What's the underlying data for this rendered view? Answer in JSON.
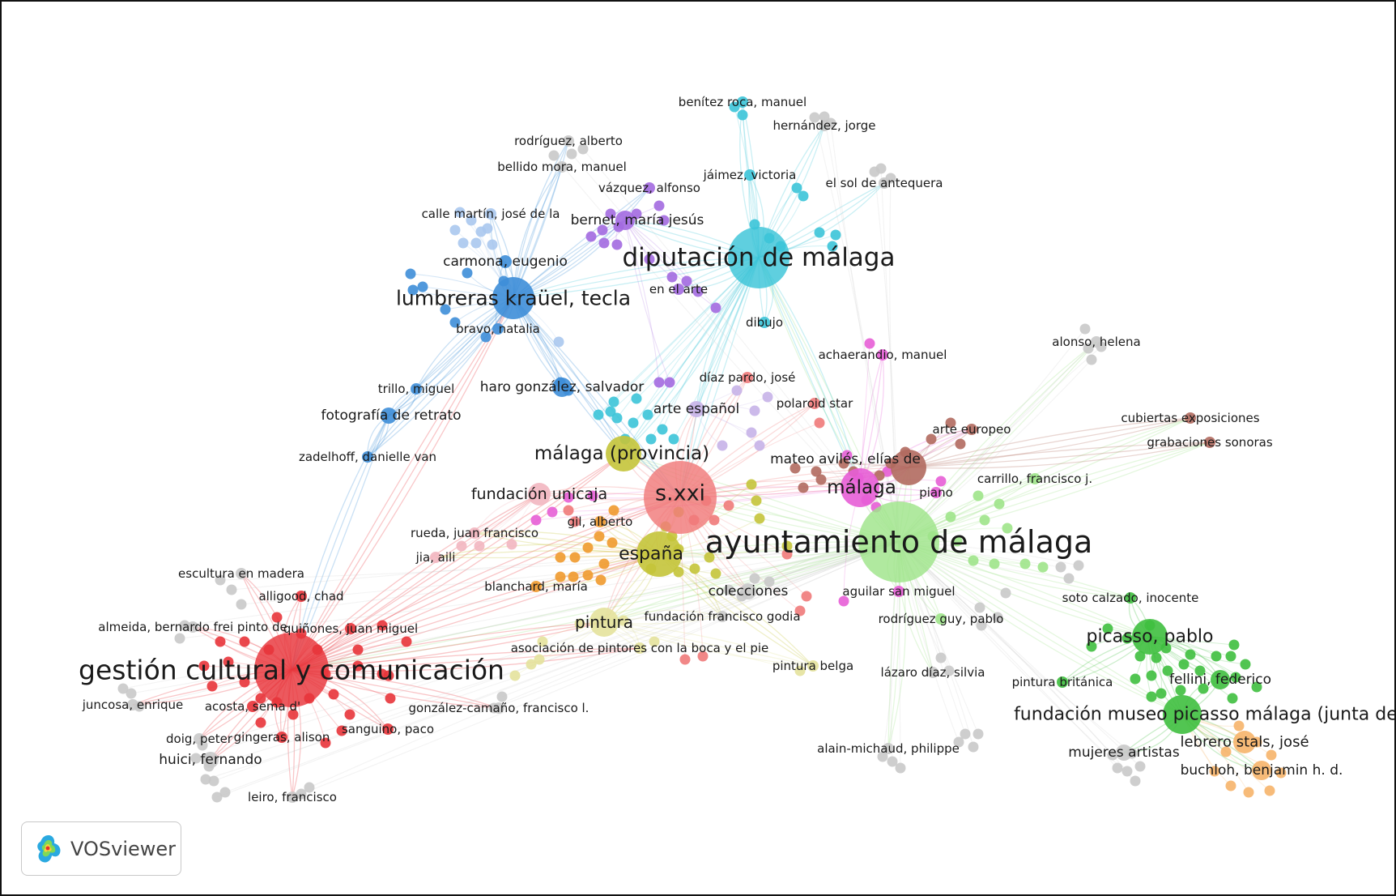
{
  "brand": {
    "name": "VOSviewer"
  },
  "colors": {
    "red": "#e8343a",
    "blue": "#3e8ed8",
    "lightblue": "#aac8ee",
    "cyan": "#3cc4d8",
    "purple": "#a36ae0",
    "pink": "#e75ed6",
    "brown": "#b16a5f",
    "green": "#3fbf3f",
    "lightgreen": "#9fe48a",
    "yellow": "#c4c43a",
    "orange": "#f09a2e",
    "salmon": "#f07a7a",
    "peach": "#f6b46a",
    "gray": "#c9c9c9",
    "lavender": "#c6b2e8",
    "rose": "#f2b6c0",
    "paleyellow": "#e4e29c"
  },
  "network": {
    "items": [
      {
        "id": "ayuntamiento",
        "label": "ayuntamiento de málaga",
        "cluster": "lightgreen",
        "weight": 100
      },
      {
        "id": "gestion",
        "label": "gestión cultural y comunicación",
        "cluster": "red",
        "weight": 78
      },
      {
        "id": "diputacion",
        "label": "diputación de málaga",
        "cluster": "cyan",
        "weight": 72
      },
      {
        "id": "lumbreras",
        "label": "lumbreras kraüel, tecla",
        "cluster": "blue",
        "weight": 50
      },
      {
        "id": "sxxi",
        "label": "s.xxi",
        "cluster": "salmon",
        "weight": 60
      },
      {
        "id": "malagaprov",
        "label": "málaga (provincia)",
        "cluster": "yellow",
        "weight": 40
      },
      {
        "id": "espana",
        "label": "españa",
        "cluster": "yellow",
        "weight": 42
      },
      {
        "id": "malaga",
        "label": "málaga",
        "cluster": "pink",
        "weight": 38
      },
      {
        "id": "picasso",
        "label": "picasso, pablo",
        "cluster": "green",
        "weight": 40
      },
      {
        "id": "fundpicasso",
        "label": "fundación museo picasso málaga (junta de andalucía)",
        "cluster": "green",
        "weight": 42
      },
      {
        "id": "pintura",
        "label": "pintura",
        "cluster": "paleyellow",
        "weight": 32
      },
      {
        "id": "fundunicaja",
        "label": "fundación unicaja",
        "cluster": "rose",
        "weight": 26
      },
      {
        "id": "mateo",
        "label": "mateo avilés, elías de",
        "cluster": "brown",
        "weight": 40
      },
      {
        "id": "colecciones",
        "label": "colecciones",
        "cluster": "gray",
        "weight": 20
      },
      {
        "id": "fotoretrato",
        "label": "fotografía de retrato",
        "cluster": "blue",
        "weight": 18
      },
      {
        "id": "haro",
        "label": "haro gonzález, salvador",
        "cluster": "blue",
        "weight": 18
      },
      {
        "id": "carmona",
        "label": "carmona, eugenio",
        "cluster": "blue",
        "weight": 14
      },
      {
        "id": "bernet",
        "label": "bernet, maría jesús",
        "cluster": "purple",
        "weight": 20
      },
      {
        "id": "arteespanol",
        "label": "arte español",
        "cluster": "lavender",
        "weight": 18
      },
      {
        "id": "lebrero",
        "label": "lebrero stals, josé",
        "cluster": "peach",
        "weight": 20
      },
      {
        "id": "buchloh",
        "label": "buchloh, benjamin h. d.",
        "cluster": "peach",
        "weight": 16
      },
      {
        "id": "fellini",
        "label": "fellini, federico",
        "cluster": "green",
        "weight": 18
      },
      {
        "id": "mujeres",
        "label": "mujeres artistas",
        "cluster": "gray",
        "weight": 16
      },
      {
        "id": "huici",
        "label": "huici, fernando",
        "cluster": "gray",
        "weight": 16
      },
      {
        "id": "benitez",
        "label": "benítez roca, manuel",
        "cluster": "cyan",
        "weight": 14
      },
      {
        "id": "hernandez",
        "label": "hernández, jorge",
        "cluster": "gray",
        "weight": 14
      },
      {
        "id": "rodriguezalb",
        "label": "rodríguez, alberto",
        "cluster": "gray",
        "weight": 14
      },
      {
        "id": "bellido",
        "label": "bellido mora, manuel",
        "cluster": "gray",
        "weight": 14
      },
      {
        "id": "vazquez",
        "label": "vázquez, alfonso",
        "cluster": "purple",
        "weight": 14
      },
      {
        "id": "jaimez",
        "label": "jáimez, victoria",
        "cluster": "cyan",
        "weight": 14
      },
      {
        "id": "elsol",
        "label": "el sol de antequera",
        "cluster": "gray",
        "weight": 14
      },
      {
        "id": "calle",
        "label": "calle martín, josé de la",
        "cluster": "lightblue",
        "weight": 14
      },
      {
        "id": "enelarte",
        "label": "en el arte",
        "cluster": "purple",
        "weight": 14
      },
      {
        "id": "dibujo",
        "label": "dibujo",
        "cluster": "cyan",
        "weight": 14
      },
      {
        "id": "bravo",
        "label": "bravo, natalia",
        "cluster": "blue",
        "weight": 14
      },
      {
        "id": "achaerandio",
        "label": "achaerandio, manuel",
        "cluster": "pink",
        "weight": 14
      },
      {
        "id": "alonso",
        "label": "alonso, helena",
        "cluster": "gray",
        "weight": 14
      },
      {
        "id": "trillo",
        "label": "trillo, miguel",
        "cluster": "blue",
        "weight": 14
      },
      {
        "id": "diazpardo",
        "label": "díaz pardo, josé",
        "cluster": "salmon",
        "weight": 14
      },
      {
        "id": "polaroid",
        "label": "polaroid star",
        "cluster": "salmon",
        "weight": 14
      },
      {
        "id": "cubiertas",
        "label": "cubiertas exposiciones",
        "cluster": "brown",
        "weight": 14
      },
      {
        "id": "arteeuropeo",
        "label": "arte europeo",
        "cluster": "brown",
        "weight": 14
      },
      {
        "id": "grabaciones",
        "label": "grabaciones sonoras",
        "cluster": "brown",
        "weight": 14
      },
      {
        "id": "zadelhoff",
        "label": "zadelhoff, danielle van",
        "cluster": "blue",
        "weight": 14
      },
      {
        "id": "carrillo",
        "label": "carrillo, francisco j.",
        "cluster": "lightgreen",
        "weight": 14
      },
      {
        "id": "piano",
        "label": "piano",
        "cluster": "pink",
        "weight": 14
      },
      {
        "id": "gilalberto",
        "label": "gil, alberto",
        "cluster": "orange",
        "weight": 14
      },
      {
        "id": "rueda",
        "label": "rueda, juan francisco",
        "cluster": "rose",
        "weight": 14
      },
      {
        "id": "jia",
        "label": "jia, aili",
        "cluster": "rose",
        "weight": 14
      },
      {
        "id": "escultura",
        "label": "escultura en madera",
        "cluster": "gray",
        "weight": 14
      },
      {
        "id": "alligood",
        "label": "alligood, chad",
        "cluster": "red",
        "weight": 14
      },
      {
        "id": "blanchard",
        "label": "blanchard, maría",
        "cluster": "orange",
        "weight": 14
      },
      {
        "id": "aguilar",
        "label": "aguilar san miguel",
        "cluster": "pink",
        "weight": 14
      },
      {
        "id": "soto",
        "label": "soto calzado, inocente",
        "cluster": "green",
        "weight": 14
      },
      {
        "id": "almeida",
        "label": "almeida, bernardo frei pinto de",
        "cluster": "gray",
        "weight": 14
      },
      {
        "id": "quinones",
        "label": "quiñones, juan miguel",
        "cluster": "red",
        "weight": 14
      },
      {
        "id": "fundgodia",
        "label": "fundación francisco godia",
        "cluster": "gray",
        "weight": 14
      },
      {
        "id": "rodriguezguy",
        "label": "rodríguez guy, pablo",
        "cluster": "lightgreen",
        "weight": 14
      },
      {
        "id": "asociacion",
        "label": "asociación de pintores con la boca y el pie",
        "cluster": "paleyellow",
        "weight": 14
      },
      {
        "id": "pinturabelga",
        "label": "pintura belga",
        "cluster": "paleyellow",
        "weight": 14
      },
      {
        "id": "lazaro",
        "label": "lázaro díaz, silvia",
        "cluster": "gray",
        "weight": 14
      },
      {
        "id": "pinturabrit",
        "label": "pintura británica",
        "cluster": "green",
        "weight": 14
      },
      {
        "id": "juncosa",
        "label": "juncosa, enrique",
        "cluster": "gray",
        "weight": 14
      },
      {
        "id": "acosta",
        "label": "acosta, sema d'",
        "cluster": "red",
        "weight": 14
      },
      {
        "id": "gonzalezcamano",
        "label": "gonzález-camaño, francisco l.",
        "cluster": "gray",
        "weight": 14
      },
      {
        "id": "doig",
        "label": "doig, peter",
        "cluster": "gray",
        "weight": 14
      },
      {
        "id": "gingeras",
        "label": "gingeras, alison",
        "cluster": "red",
        "weight": 14
      },
      {
        "id": "sanguino",
        "label": "sanguino, paco",
        "cluster": "red",
        "weight": 14
      },
      {
        "id": "alainmichaud",
        "label": "alain-michaud, philippe",
        "cluster": "gray",
        "weight": 14
      },
      {
        "id": "leiro",
        "label": "leiro, francisco",
        "cluster": "gray",
        "weight": 14
      }
    ],
    "links": [
      [
        "ayuntamiento",
        "sxxi"
      ],
      [
        "ayuntamiento",
        "espana"
      ],
      [
        "ayuntamiento",
        "malaga"
      ],
      [
        "ayuntamiento",
        "picasso"
      ],
      [
        "ayuntamiento",
        "fundpicasso"
      ],
      [
        "ayuntamiento",
        "gestion"
      ],
      [
        "ayuntamiento",
        "diputacion"
      ],
      [
        "ayuntamiento",
        "mateo"
      ],
      [
        "ayuntamiento",
        "pintura"
      ],
      [
        "ayuntamiento",
        "colecciones"
      ],
      [
        "ayuntamiento",
        "malagaprov"
      ],
      [
        "ayuntamiento",
        "alonso"
      ],
      [
        "ayuntamiento",
        "carrillo"
      ],
      [
        "ayuntamiento",
        "soto"
      ],
      [
        "ayuntamiento",
        "lazaro"
      ],
      [
        "ayuntamiento",
        "alainmichaud"
      ],
      [
        "ayuntamiento",
        "cubiertas"
      ],
      [
        "ayuntamiento",
        "grabaciones"
      ],
      [
        "ayuntamiento",
        "rodriguezguy"
      ],
      [
        "ayuntamiento",
        "aguilar"
      ],
      [
        "gestion",
        "sxxi"
      ],
      [
        "gestion",
        "espana"
      ],
      [
        "gestion",
        "pintura"
      ],
      [
        "gestion",
        "lumbreras"
      ],
      [
        "gestion",
        "malagaprov"
      ],
      [
        "gestion",
        "fundunicaja"
      ],
      [
        "gestion",
        "huici"
      ],
      [
        "gestion",
        "juncosa"
      ],
      [
        "gestion",
        "almeida"
      ],
      [
        "gestion",
        "escultura"
      ],
      [
        "gestion",
        "alligood"
      ],
      [
        "gestion",
        "quinones"
      ],
      [
        "gestion",
        "acosta"
      ],
      [
        "gestion",
        "doig"
      ],
      [
        "gestion",
        "gingeras"
      ],
      [
        "gestion",
        "sanguino"
      ],
      [
        "gestion",
        "leiro"
      ],
      [
        "gestion",
        "gonzalezcamano"
      ],
      [
        "gestion",
        "asociacion"
      ],
      [
        "diputacion",
        "sxxi"
      ],
      [
        "diputacion",
        "malagaprov"
      ],
      [
        "diputacion",
        "benitez"
      ],
      [
        "diputacion",
        "hernandez"
      ],
      [
        "diputacion",
        "jaimez"
      ],
      [
        "diputacion",
        "elsol"
      ],
      [
        "diputacion",
        "dibujo"
      ],
      [
        "diputacion",
        "enelarte"
      ],
      [
        "diputacion",
        "bernet"
      ],
      [
        "diputacion",
        "lumbreras"
      ],
      [
        "diputacion",
        "arteespanol"
      ],
      [
        "diputacion",
        "malaga"
      ],
      [
        "lumbreras",
        "carmona"
      ],
      [
        "lumbreras",
        "calle"
      ],
      [
        "lumbreras",
        "bravo"
      ],
      [
        "lumbreras",
        "trillo"
      ],
      [
        "lumbreras",
        "fotoretrato"
      ],
      [
        "lumbreras",
        "zadelhoff"
      ],
      [
        "lumbreras",
        "haro"
      ],
      [
        "lumbreras",
        "bernet"
      ],
      [
        "lumbreras",
        "vazquez"
      ],
      [
        "lumbreras",
        "bellido"
      ],
      [
        "lumbreras",
        "rodriguezalb"
      ],
      [
        "lumbreras",
        "malagaprov"
      ],
      [
        "lumbreras",
        "sxxi"
      ],
      [
        "sxxi",
        "espana"
      ],
      [
        "sxxi",
        "malaga"
      ],
      [
        "sxxi",
        "malagaprov"
      ],
      [
        "sxxi",
        "mateo"
      ],
      [
        "sxxi",
        "fundunicaja"
      ],
      [
        "sxxi",
        "pintura"
      ],
      [
        "sxxi",
        "arteespanol"
      ],
      [
        "sxxi",
        "diazpardo"
      ],
      [
        "sxxi",
        "polaroid"
      ],
      [
        "sxxi",
        "gilalberto"
      ],
      [
        "sxxi",
        "colecciones"
      ],
      [
        "espana",
        "pintura"
      ],
      [
        "espana",
        "blanchard"
      ],
      [
        "espana",
        "gilalberto"
      ],
      [
        "espana",
        "rueda"
      ],
      [
        "espana",
        "jia"
      ],
      [
        "espana",
        "fundgodia"
      ],
      [
        "espana",
        "pinturabelga"
      ],
      [
        "malaga",
        "mateo"
      ],
      [
        "malaga",
        "achaerandio"
      ],
      [
        "malaga",
        "piano"
      ],
      [
        "malaga",
        "arteeuropeo"
      ],
      [
        "mateo",
        "arteeuropeo"
      ],
      [
        "mateo",
        "cubiertas"
      ],
      [
        "mateo",
        "grabaciones"
      ],
      [
        "picasso",
        "fundpicasso"
      ],
      [
        "picasso",
        "fellini"
      ],
      [
        "picasso",
        "soto"
      ],
      [
        "picasso",
        "pinturabrit"
      ],
      [
        "fundpicasso",
        "lebrero"
      ],
      [
        "fundpicasso",
        "buchloh"
      ],
      [
        "fundpicasso",
        "mujeres"
      ],
      [
        "fundpicasso",
        "fellini"
      ],
      [
        "fotoretrato",
        "zadelhoff"
      ],
      [
        "fotoretrato",
        "trillo"
      ],
      [
        "fotoretrato",
        "gestion"
      ],
      [
        "pintura",
        "asociacion"
      ],
      [
        "pintura",
        "fundgodia"
      ],
      [
        "pintura",
        "pinturabelga"
      ],
      [
        "fundunicaja",
        "rueda"
      ]
    ]
  }
}
